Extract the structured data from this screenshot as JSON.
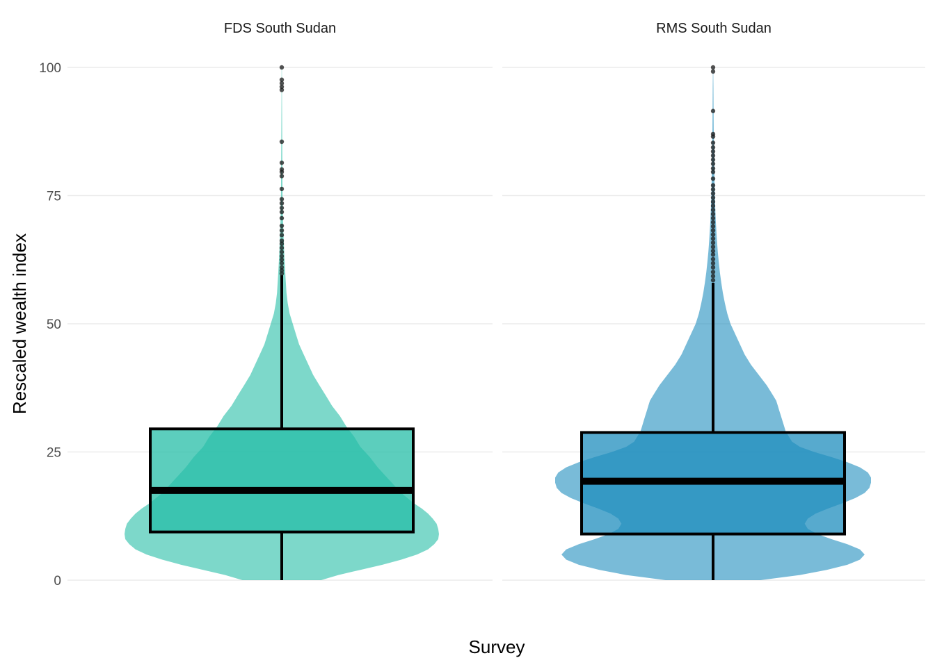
{
  "chart_data": {
    "type": "violin-boxplot",
    "xlabel": "Survey",
    "ylabel": "Rescaled wealth index",
    "ylim": [
      0,
      100
    ],
    "y_ticks": [
      0,
      25,
      50,
      75,
      100
    ],
    "grid": true,
    "legend": "none",
    "panels": [
      {
        "name": "FDS South Sudan",
        "color": "#26BEA7",
        "box": {
          "q1": 9.4,
          "median": 17.5,
          "q3": 29.5,
          "whisker_low": 0,
          "whisker_high": 59.5
        },
        "density": [
          [
            0,
            0.25
          ],
          [
            1,
            0.36
          ],
          [
            2,
            0.5
          ],
          [
            3,
            0.64
          ],
          [
            4,
            0.76
          ],
          [
            5,
            0.86
          ],
          [
            6,
            0.93
          ],
          [
            7,
            0.97
          ],
          [
            8,
            0.995
          ],
          [
            9,
            1.0
          ],
          [
            10,
            0.995
          ],
          [
            11,
            0.985
          ],
          [
            12,
            0.96
          ],
          [
            13,
            0.93
          ],
          [
            14,
            0.89
          ],
          [
            15,
            0.84
          ],
          [
            16,
            0.8
          ],
          [
            17,
            0.76
          ],
          [
            18,
            0.73
          ],
          [
            19,
            0.7
          ],
          [
            20,
            0.67
          ],
          [
            22,
            0.61
          ],
          [
            24,
            0.56
          ],
          [
            26,
            0.5
          ],
          [
            28,
            0.46
          ],
          [
            30,
            0.41
          ],
          [
            32,
            0.37
          ],
          [
            34,
            0.32
          ],
          [
            36,
            0.28
          ],
          [
            38,
            0.24
          ],
          [
            40,
            0.2
          ],
          [
            42,
            0.17
          ],
          [
            44,
            0.14
          ],
          [
            46,
            0.11
          ],
          [
            48,
            0.09
          ],
          [
            50,
            0.07
          ],
          [
            52,
            0.05
          ],
          [
            54,
            0.038
          ],
          [
            56,
            0.03
          ],
          [
            58,
            0.026
          ],
          [
            60,
            0.022
          ],
          [
            63,
            0.017
          ],
          [
            66,
            0.013
          ],
          [
            70,
            0.008
          ],
          [
            75,
            0.005
          ],
          [
            80,
            0.004
          ],
          [
            85,
            0.003
          ],
          [
            90,
            0.002
          ],
          [
            95,
            0.0015
          ],
          [
            100,
            0.001
          ]
        ],
        "outliers": [
          59.8,
          60.4,
          61,
          61.8,
          62.5,
          63.2,
          64,
          64.8,
          65.6,
          66.2,
          67.3,
          68.2,
          69.1,
          70.6,
          71.8,
          72.6,
          73.5,
          74.3,
          76.3,
          78.8,
          79.6,
          80.1,
          81.4,
          85.5,
          95.6,
          96.2,
          96.9,
          97.6,
          100
        ]
      },
      {
        "name": "RMS South Sudan",
        "color": "#1F8DBE",
        "box": {
          "q1": 9.0,
          "median": 19.3,
          "q3": 28.8,
          "whisker_low": 0,
          "whisker_high": 58.0
        },
        "density": [
          [
            0,
            0.3
          ],
          [
            1,
            0.55
          ],
          [
            2,
            0.72
          ],
          [
            3,
            0.85
          ],
          [
            4,
            0.93
          ],
          [
            5,
            0.96
          ],
          [
            6,
            0.93
          ],
          [
            7,
            0.85
          ],
          [
            8,
            0.75
          ],
          [
            9,
            0.66
          ],
          [
            10,
            0.6
          ],
          [
            11,
            0.58
          ],
          [
            12,
            0.6
          ],
          [
            13,
            0.65
          ],
          [
            14,
            0.73
          ],
          [
            15,
            0.82
          ],
          [
            16,
            0.9
          ],
          [
            17,
            0.96
          ],
          [
            18,
            0.99
          ],
          [
            19,
            1.0
          ],
          [
            20,
            1.0
          ],
          [
            21,
            0.98
          ],
          [
            22,
            0.93
          ],
          [
            23,
            0.85
          ],
          [
            24,
            0.75
          ],
          [
            25,
            0.64
          ],
          [
            26,
            0.55
          ],
          [
            27,
            0.5
          ],
          [
            28,
            0.48
          ],
          [
            29,
            0.46
          ],
          [
            30,
            0.45
          ],
          [
            31,
            0.44
          ],
          [
            32,
            0.43
          ],
          [
            33,
            0.42
          ],
          [
            34,
            0.41
          ],
          [
            35,
            0.4
          ],
          [
            36,
            0.38
          ],
          [
            38,
            0.34
          ],
          [
            40,
            0.29
          ],
          [
            42,
            0.24
          ],
          [
            44,
            0.2
          ],
          [
            46,
            0.17
          ],
          [
            48,
            0.14
          ],
          [
            50,
            0.11
          ],
          [
            52,
            0.09
          ],
          [
            54,
            0.075
          ],
          [
            56,
            0.062
          ],
          [
            58,
            0.052
          ],
          [
            60,
            0.043
          ],
          [
            62,
            0.036
          ],
          [
            64,
            0.03
          ],
          [
            66,
            0.025
          ],
          [
            68,
            0.021
          ],
          [
            70,
            0.017
          ],
          [
            73,
            0.013
          ],
          [
            76,
            0.01
          ],
          [
            80,
            0.008
          ],
          [
            84,
            0.006
          ],
          [
            88,
            0.004
          ],
          [
            92,
            0.003
          ],
          [
            96,
            0.002
          ],
          [
            100,
            0.001
          ]
        ],
        "outliers": [
          58.5,
          59.3,
          60.1,
          61,
          61.8,
          62.6,
          63.5,
          64.2,
          65,
          65.8,
          66.6,
          67.4,
          68.2,
          69,
          69.8,
          70.6,
          71.4,
          72.2,
          73,
          73.8,
          74.6,
          75.4,
          76.2,
          77,
          78.3,
          79.6,
          80.3,
          81.2,
          82,
          82.8,
          83.6,
          84.4,
          85.3,
          86.5,
          87,
          91.5,
          99.2,
          100
        ]
      }
    ]
  }
}
